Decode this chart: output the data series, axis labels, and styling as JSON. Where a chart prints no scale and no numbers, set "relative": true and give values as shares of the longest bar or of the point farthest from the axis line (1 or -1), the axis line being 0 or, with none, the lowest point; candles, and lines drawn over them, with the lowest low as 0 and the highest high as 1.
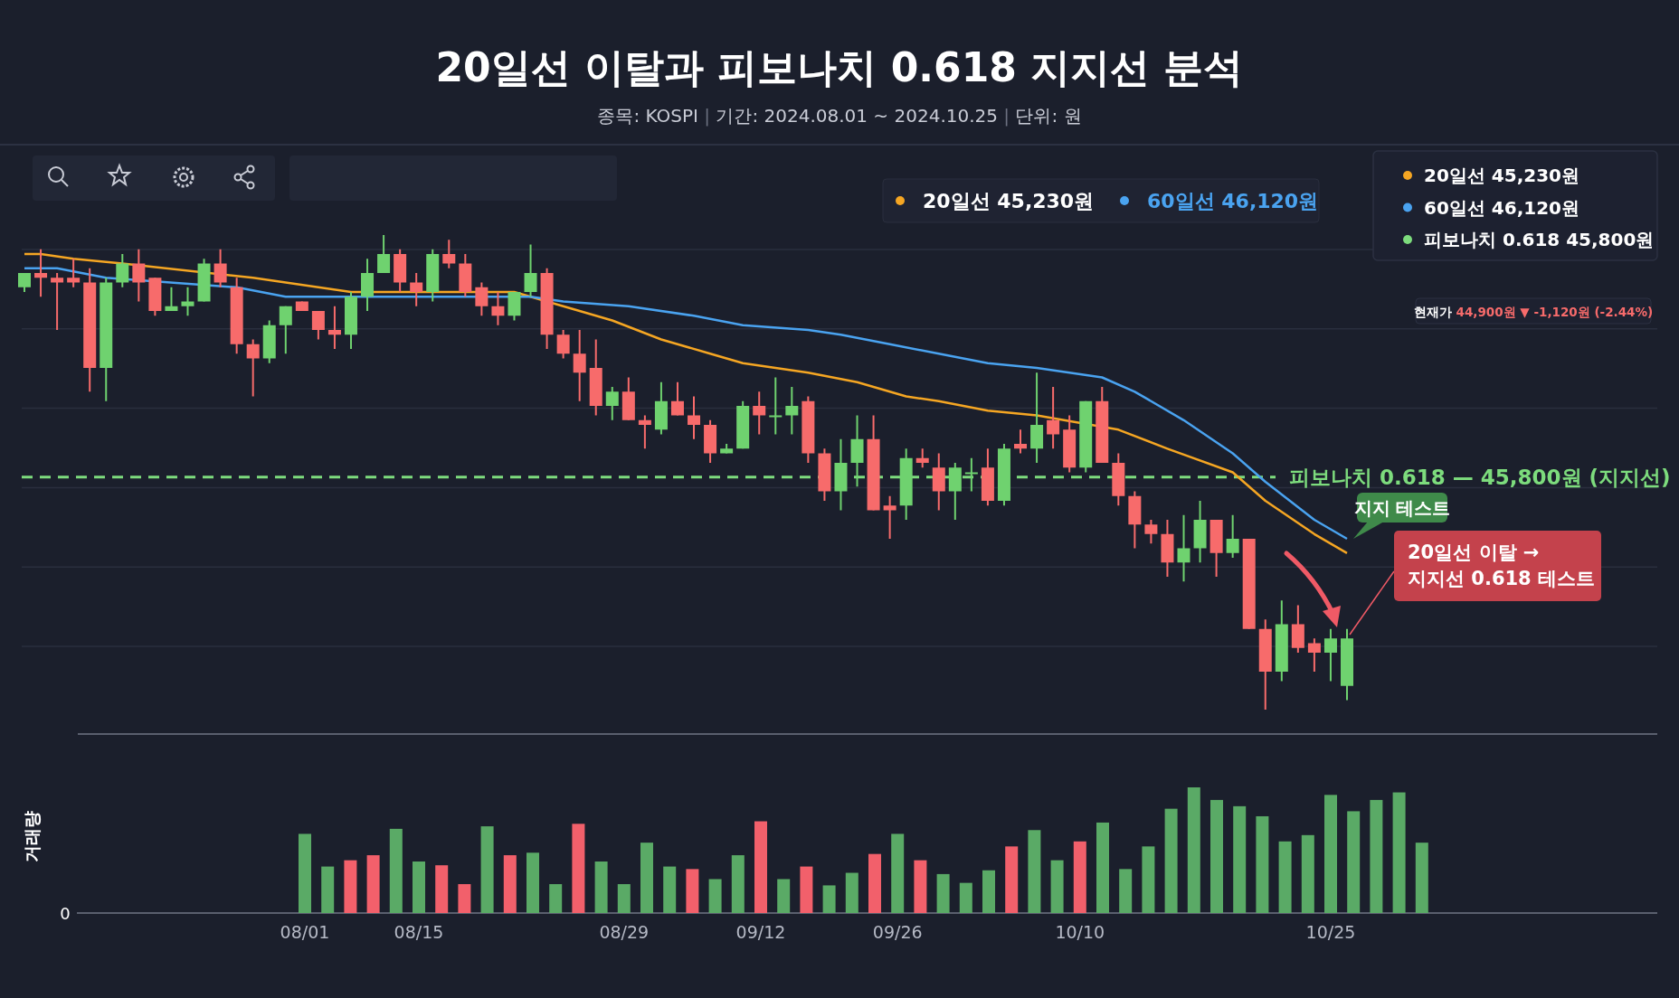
{
  "chart_data": [
    {
      "type": "candlestick",
      "title": "20일선 이탈과 피보나치 0.618 지지선 분석",
      "subtitle": "종목: KOSPI | 기간: 2024.08.01 ~ 2024.10.25 | 단위: 원",
      "relative": true,
      "grid": true,
      "legend": "top right",
      "categories": [
        null,
        null,
        null,
        null,
        null,
        null,
        null,
        null,
        null,
        null,
        null,
        null,
        null,
        null,
        null,
        null,
        null,
        null,
        null,
        null,
        null,
        null,
        null,
        null,
        null,
        null,
        null,
        null,
        null,
        null,
        null,
        null,
        null,
        null,
        null,
        null,
        null,
        null,
        null,
        null,
        null,
        null,
        null,
        null,
        null,
        null,
        null,
        null,
        null,
        null,
        null,
        null,
        null,
        null,
        null,
        null,
        null,
        null,
        null,
        null,
        null,
        null,
        null,
        null,
        null,
        null,
        null,
        null,
        null,
        null,
        null,
        null,
        null,
        null,
        null,
        null,
        null,
        null,
        null,
        null,
        null,
        null
      ],
      "ohlc": [
        [
          0.89,
          0.92,
          0.88,
          0.92
        ],
        [
          0.92,
          0.97,
          0.87,
          0.91
        ],
        [
          0.91,
          0.92,
          0.8,
          0.9
        ],
        [
          0.91,
          0.95,
          0.89,
          0.9
        ],
        [
          0.9,
          0.93,
          0.67,
          0.72
        ],
        [
          0.72,
          0.91,
          0.65,
          0.9
        ],
        [
          0.9,
          0.96,
          0.89,
          0.94
        ],
        [
          0.94,
          0.97,
          0.86,
          0.9
        ],
        [
          0.91,
          0.91,
          0.83,
          0.84
        ],
        [
          0.84,
          0.89,
          0.84,
          0.85
        ],
        [
          0.85,
          0.89,
          0.83,
          0.86
        ],
        [
          0.86,
          0.95,
          0.86,
          0.94
        ],
        [
          0.94,
          0.97,
          0.89,
          0.9
        ],
        [
          0.89,
          0.91,
          0.75,
          0.77
        ],
        [
          0.77,
          0.78,
          0.66,
          0.74
        ],
        [
          0.74,
          0.82,
          0.73,
          0.81
        ],
        [
          0.81,
          0.85,
          0.75,
          0.85
        ],
        [
          0.86,
          0.86,
          0.84,
          0.84
        ],
        [
          0.84,
          0.84,
          0.78,
          0.8
        ],
        [
          0.8,
          0.85,
          0.76,
          0.79
        ],
        [
          0.79,
          0.88,
          0.76,
          0.87
        ],
        [
          0.87,
          0.95,
          0.84,
          0.92
        ],
        [
          0.92,
          1,
          0.92,
          0.96
        ],
        [
          0.96,
          0.97,
          0.88,
          0.9
        ],
        [
          0.9,
          0.92,
          0.85,
          0.88
        ],
        [
          0.88,
          0.97,
          0.86,
          0.96
        ],
        [
          0.96,
          0.99,
          0.93,
          0.94
        ],
        [
          0.94,
          0.96,
          0.87,
          0.88
        ],
        [
          0.89,
          0.9,
          0.83,
          0.85
        ],
        [
          0.85,
          0.88,
          0.81,
          0.83
        ],
        [
          0.83,
          0.88,
          0.82,
          0.88
        ],
        [
          0.88,
          0.98,
          0.87,
          0.92
        ],
        [
          0.92,
          0.93,
          0.76,
          0.79
        ],
        [
          0.79,
          0.8,
          0.74,
          0.75
        ],
        [
          0.75,
          0.8,
          0.65,
          0.71
        ],
        [
          0.72,
          0.78,
          0.62,
          0.64
        ],
        [
          0.64,
          0.68,
          0.61,
          0.67
        ],
        [
          0.67,
          0.7,
          0.61,
          0.61
        ],
        [
          0.61,
          0.62,
          0.55,
          0.6
        ],
        [
          0.59,
          0.69,
          0.58,
          0.65
        ],
        [
          0.65,
          0.69,
          0.62,
          0.62
        ],
        [
          0.62,
          0.66,
          0.57,
          0.6
        ],
        [
          0.6,
          0.61,
          0.52,
          0.54
        ],
        [
          0.54,
          0.56,
          0.54,
          0.55
        ],
        [
          0.55,
          0.65,
          0.55,
          0.64
        ],
        [
          0.64,
          0.67,
          0.58,
          0.62
        ],
        [
          0.62,
          0.7,
          0.58,
          0.62
        ],
        [
          0.62,
          0.68,
          0.58,
          0.64
        ],
        [
          0.65,
          0.66,
          0.52,
          0.54
        ],
        [
          0.54,
          0.55,
          0.44,
          0.46
        ],
        [
          0.46,
          0.57,
          0.42,
          0.52
        ],
        [
          0.52,
          0.62,
          0.47,
          0.57
        ],
        [
          0.57,
          0.62,
          0.42,
          0.42
        ],
        [
          0.43,
          0.45,
          0.36,
          0.42
        ],
        [
          0.43,
          0.55,
          0.4,
          0.53
        ],
        [
          0.53,
          0.55,
          0.51,
          0.52
        ],
        [
          0.51,
          0.54,
          0.42,
          0.46
        ],
        [
          0.46,
          0.52,
          0.4,
          0.51
        ],
        [
          0.5,
          0.53,
          0.46,
          0.5
        ],
        [
          0.51,
          0.55,
          0.43,
          0.44
        ],
        [
          0.44,
          0.56,
          0.43,
          0.55
        ],
        [
          0.56,
          0.59,
          0.54,
          0.55
        ],
        [
          0.55,
          0.71,
          0.52,
          0.6
        ],
        [
          0.61,
          0.68,
          0.55,
          0.58
        ],
        [
          0.59,
          0.62,
          0.5,
          0.51
        ],
        [
          0.51,
          0.65,
          0.5,
          0.65
        ],
        [
          0.65,
          0.68,
          0.52,
          0.52
        ],
        [
          0.52,
          0.54,
          0.43,
          0.45
        ],
        [
          0.45,
          0.46,
          0.34,
          0.39
        ],
        [
          0.39,
          0.4,
          0.35,
          0.37
        ],
        [
          0.37,
          0.4,
          0.28,
          0.31
        ],
        [
          0.31,
          0.41,
          0.27,
          0.34
        ],
        [
          0.34,
          0.44,
          0.31,
          0.4
        ],
        [
          0.4,
          0.4,
          0.28,
          0.33
        ],
        [
          0.33,
          0.41,
          0.32,
          0.36
        ],
        [
          0.36,
          0.36,
          0.17,
          0.17
        ],
        [
          0.17,
          0.19,
          0,
          0.08
        ],
        [
          0.08,
          0.23,
          0.06,
          0.18
        ],
        [
          0.18,
          0.22,
          0.12,
          0.13
        ],
        [
          0.14,
          0.15,
          0.08,
          0.12
        ],
        [
          0.12,
          0.17,
          0.06,
          0.15
        ],
        [
          0.05,
          0.17,
          0.02,
          0.15
        ]
      ],
      "series": [
        {
          "type": "line",
          "name": "20일선 45,230원",
          "color": "#f5a623",
          "values": [
            0.96,
            0.96,
            null,
            0.95,
            null,
            null,
            0.94,
            null,
            null,
            null,
            null,
            null,
            null,
            null,
            0.91,
            null,
            0.9,
            null,
            0.89,
            null,
            0.88,
            null,
            0.88,
            null,
            null,
            0.88,
            null,
            null,
            null,
            null,
            0.88,
            null,
            null,
            null,
            0.84,
            null,
            0.82,
            null,
            null,
            0.78,
            null,
            null,
            0.75,
            null,
            0.73,
            null,
            0.72,
            null,
            0.71,
            null,
            null,
            0.69,
            null,
            null,
            0.66,
            null,
            0.65,
            null,
            null,
            0.63,
            null,
            null,
            0.62,
            null,
            null,
            null,
            null,
            0.59,
            null,
            null,
            0.55,
            null,
            null,
            null,
            0.5,
            null,
            0.44,
            null,
            null,
            0.37,
            null,
            0.33
          ]
        },
        {
          "type": "line",
          "name": "60일선 46,120원",
          "color": "#4aa3f0",
          "values": [
            0.93,
            null,
            0.93,
            null,
            null,
            0.91,
            null,
            null,
            null,
            null,
            null,
            null,
            null,
            0.89,
            null,
            null,
            0.87,
            null,
            null,
            null,
            0.87,
            null,
            null,
            null,
            0.87,
            null,
            null,
            null,
            null,
            null,
            null,
            0.87,
            null,
            0.86,
            null,
            null,
            null,
            0.85,
            null,
            null,
            null,
            0.83,
            null,
            null,
            0.81,
            null,
            null,
            null,
            0.8,
            null,
            0.79,
            null,
            null,
            0.77,
            null,
            null,
            0.75,
            null,
            null,
            0.73,
            null,
            null,
            0.72,
            null,
            null,
            null,
            0.7,
            null,
            0.67,
            null,
            null,
            0.61,
            null,
            null,
            0.54,
            null,
            0.48,
            null,
            null,
            0.4,
            null,
            0.36
          ]
        }
      ],
      "ref_lines": [
        {
          "axis": "y",
          "value": 0.49,
          "label": "피보나치 0.618 — 45,800원 (지지선)",
          "color": "#7ddc7d",
          "line_style": "dashed"
        }
      ],
      "annotations": [
        "피보나치 0.618 45,800원",
        "현재가 44,900원 ▼ -1,120원 (-2.44%)",
        "지지 테스트",
        "20일선 이탈 → 지지선 0.618 테스트"
      ]
    },
    {
      "type": "bar",
      "relative": true,
      "ylabel": "거래량",
      "annotations": [
        "0"
      ],
      "categories": [
        "08/01",
        null,
        null,
        null,
        null,
        "08/15",
        null,
        null,
        null,
        null,
        null,
        null,
        null,
        null,
        "08/29",
        null,
        null,
        null,
        null,
        null,
        "09/12",
        null,
        null,
        null,
        null,
        null,
        "09/26",
        null,
        null,
        null,
        null,
        null,
        null,
        null,
        "10/10",
        null,
        null,
        null,
        null,
        null,
        null,
        null,
        null,
        null,
        null,
        "10/25",
        null,
        null,
        null,
        null
      ],
      "values": [
        0.63,
        0.37,
        0.42,
        0.46,
        0.67,
        0.41,
        0.38,
        0.23,
        0.69,
        0.46,
        0.48,
        0.23,
        0.71,
        0.41,
        0.23,
        0.56,
        0.37,
        0.35,
        0.27,
        0.46,
        0.73,
        0.27,
        0.37,
        0.22,
        0.32,
        0.47,
        0.63,
        0.42,
        0.31,
        0.24,
        0.34,
        0.53,
        0.66,
        0.42,
        0.57,
        0.72,
        0.35,
        0.53,
        0.83,
        1.0,
        0.9,
        0.85,
        0.77,
        0.57,
        0.62,
        0.94,
        0.81,
        0.9,
        0.96,
        0.56
      ],
      "colors": [
        "#5aaa66",
        "#5aaa66",
        "#f2606b",
        "#f2606b",
        "#5aaa66",
        "#5aaa66",
        "#f2606b",
        "#f2606b",
        "#5aaa66",
        "#f2606b",
        "#5aaa66",
        "#5aaa66",
        "#f2606b",
        "#5aaa66",
        "#5aaa66",
        "#5aaa66",
        "#5aaa66",
        "#f2606b",
        "#5aaa66",
        "#5aaa66",
        "#f2606b",
        "#5aaa66",
        "#f2606b",
        "#5aaa66",
        "#5aaa66",
        "#f2606b",
        "#5aaa66",
        "#f2606b",
        "#5aaa66",
        "#5aaa66",
        "#5aaa66",
        "#f2606b",
        "#5aaa66",
        "#5aaa66",
        "#f2606b",
        "#5aaa66",
        "#5aaa66",
        "#5aaa66",
        "#5aaa66",
        "#5aaa66",
        "#5aaa66",
        "#5aaa66",
        "#5aaa66",
        "#5aaa66",
        "#5aaa66",
        "#5aaa66",
        "#5aaa66",
        "#5aaa66",
        "#5aaa66",
        "#5aaa66"
      ]
    }
  ]
}
